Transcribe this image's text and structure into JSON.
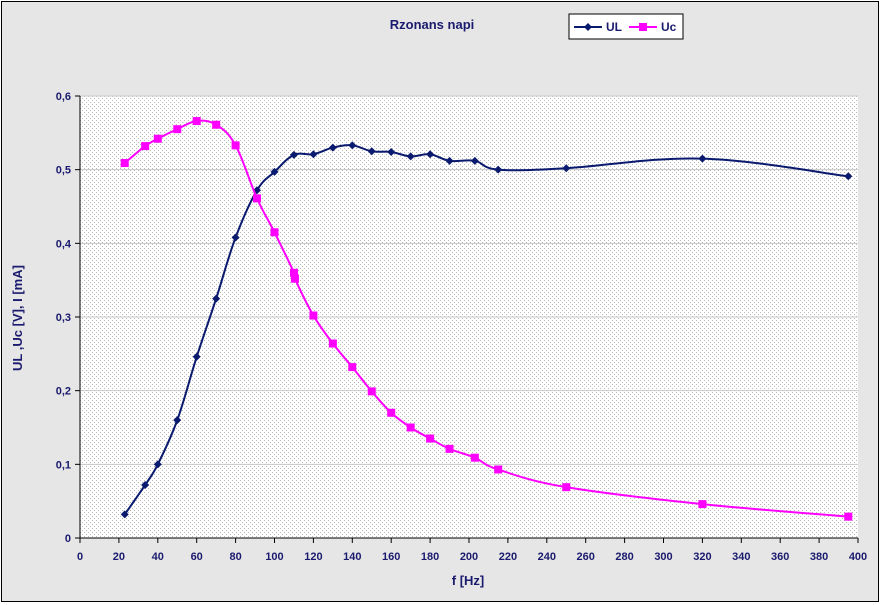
{
  "chart_data": {
    "type": "line",
    "title": "Rzonans  napi",
    "xlabel": "f [Hz]",
    "ylabel": "UL ,Uc  [V], I  [mA]",
    "xlim": [
      0,
      400
    ],
    "ylim": [
      0,
      0.6
    ],
    "x_ticks": [
      "0",
      "20",
      "40",
      "60",
      "80",
      "100",
      "120",
      "140",
      "160",
      "180",
      "200",
      "220",
      "240",
      "260",
      "280",
      "300",
      "320",
      "340",
      "360",
      "380",
      "400"
    ],
    "y_ticks": [
      "0",
      "0,1",
      "0,2",
      "0,3",
      "0,4",
      "0,5",
      "0,6"
    ],
    "grid": true,
    "legend_position": "top-right",
    "series": [
      {
        "name": "UL",
        "color": "#0a1a6e",
        "marker": "diamond",
        "x": [
          23,
          33.5,
          40,
          50,
          60,
          70,
          80,
          91,
          100,
          110,
          120,
          130,
          140,
          150,
          160,
          170,
          180,
          190,
          203,
          215,
          250,
          320,
          395
        ],
        "y": [
          0.032,
          0.072,
          0.1,
          0.16,
          0.246,
          0.325,
          0.408,
          0.472,
          0.497,
          0.52,
          0.521,
          0.53,
          0.533,
          0.525,
          0.524,
          0.518,
          0.521,
          0.512,
          0.512,
          0.5,
          0.502,
          0.515,
          0.491
        ]
      },
      {
        "name": "Uc",
        "color": "#ff00ff",
        "marker": "square",
        "x": [
          23,
          33.5,
          40,
          50,
          60,
          70,
          80,
          91,
          100,
          110,
          110.5,
          120,
          130,
          140,
          150,
          160,
          170,
          180,
          190,
          203,
          215,
          250,
          320,
          395
        ],
        "y": [
          0.509,
          0.532,
          0.542,
          0.555,
          0.566,
          0.561,
          0.533,
          0.461,
          0.415,
          0.36,
          0.352,
          0.302,
          0.264,
          0.232,
          0.199,
          0.17,
          0.15,
          0.135,
          0.121,
          0.109,
          0.093,
          0.069,
          0.046,
          0.029
        ]
      }
    ]
  }
}
